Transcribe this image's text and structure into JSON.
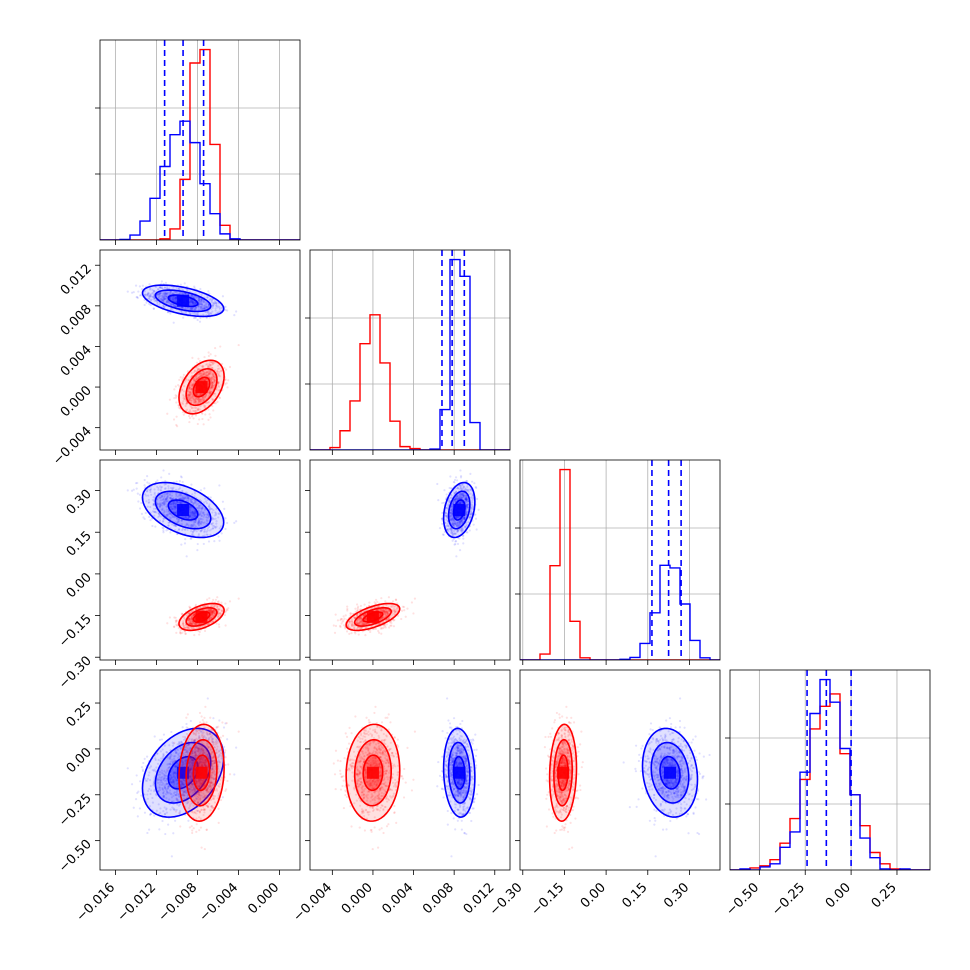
{
  "chart_data": {
    "type": "corner",
    "parameters": 4,
    "colors": {
      "a": "#0000ff",
      "b": "#ff0000",
      "grid": "#b0b0b0"
    },
    "series": [
      {
        "color": "blue",
        "mean": [
          -0.0094,
          0.0085,
          0.23,
          -0.13
        ],
        "std": [
          0.0018,
          0.0007,
          0.045,
          0.11
        ],
        "quantiles": [
          [
            -0.0112,
            -0.0094,
            -0.0074
          ],
          [
            0.0068,
            0.0078,
            0.009
          ],
          [
            0.165,
            0.225,
            0.27
          ],
          [
            -0.24,
            -0.135,
            0.0
          ]
        ],
        "corr": {
          "0-1": -0.5,
          "0-2": -0.45,
          "0-3": 0.35,
          "1-2": 0.3,
          "1-3": -0.1,
          "2-3": -0.15
        }
      },
      {
        "color": "red",
        "mean": [
          -0.0076,
          0.0,
          -0.155,
          -0.13
        ],
        "std": [
          0.001,
          0.0012,
          0.022,
          0.12
        ],
        "corr": {
          "0-1": 0.4,
          "0-2": 0.5,
          "0-3": 0.1,
          "1-2": 0.6,
          "1-3": 0.05,
          "2-3": 0.1
        }
      }
    ],
    "axes": [
      {
        "range": [
          -0.0175,
          0.002
        ],
        "ticks": [
          -0.016,
          -0.012,
          -0.008,
          -0.004,
          0.0
        ],
        "tick_labels": [
          "−0.016",
          "−0.012",
          "−0.008",
          "−0.004",
          "0.000"
        ]
      },
      {
        "range": [
          -0.0062,
          0.0135
        ],
        "ticks": [
          -0.004,
          0.0,
          0.004,
          0.008,
          0.012
        ],
        "tick_labels": [
          "−0.004",
          "0.000",
          "0.004",
          "0.008",
          "0.012"
        ]
      },
      {
        "range": [
          -0.31,
          0.41
        ],
        "ticks": [
          -0.3,
          -0.15,
          0.0,
          0.15,
          0.3
        ],
        "tick_labels": [
          "−0.30",
          "−0.15",
          "0.00",
          "0.15",
          "0.30"
        ]
      },
      {
        "range": [
          -0.66,
          0.43
        ],
        "ticks": [
          -0.5,
          -0.25,
          0.0,
          0.25
        ],
        "tick_labels": [
          "−0.50",
          "−0.25",
          "0.00",
          "0.25"
        ]
      }
    ],
    "histogram": {
      "bins": 20,
      "grid": true
    },
    "scatter_points_per_series": 900,
    "contours": 3,
    "xlabels": [
      "",
      "",
      "",
      ""
    ],
    "ylabels": [
      "",
      "",
      "",
      ""
    ]
  }
}
